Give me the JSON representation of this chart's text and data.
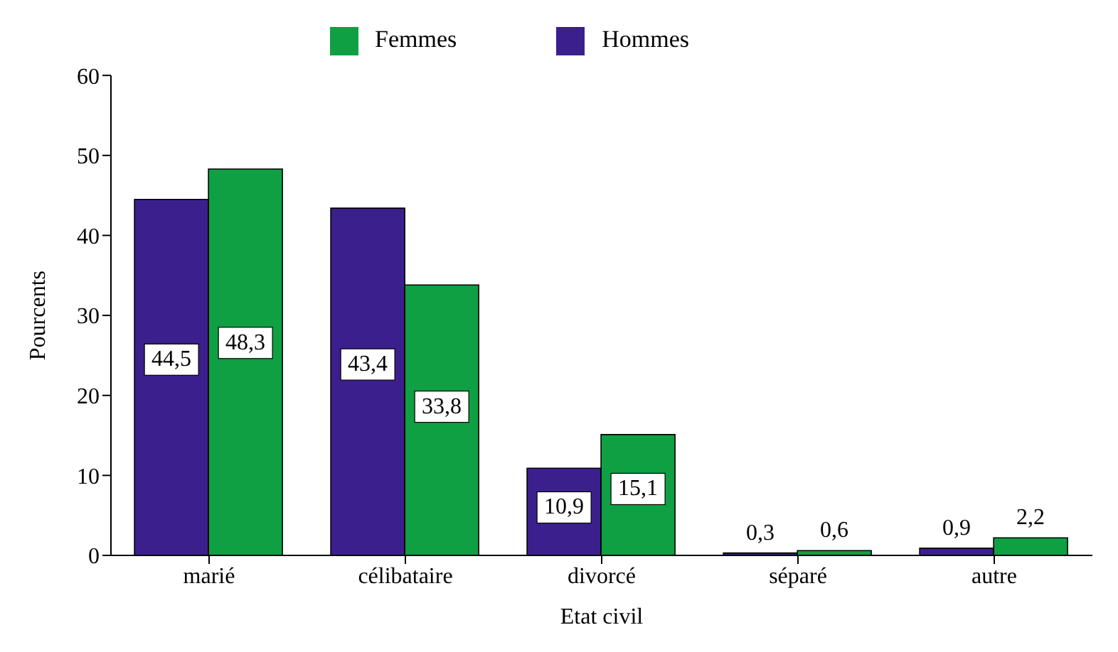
{
  "chart_data": {
    "type": "bar",
    "xlabel": "Etat civil",
    "ylabel": "Pourcents",
    "categories": [
      "marié",
      "célibataire",
      "divorcé",
      "séparé",
      "autre"
    ],
    "series": [
      {
        "name": "Hommes",
        "color": "#3b1f8c",
        "values": [
          44.5,
          43.4,
          10.9,
          0.3,
          0.9
        ],
        "value_labels": [
          "44,5",
          "43,4",
          "10,9",
          "0,3",
          "0,9"
        ]
      },
      {
        "name": "Femmes",
        "color": "#0ea043",
        "values": [
          48.3,
          33.8,
          15.1,
          0.6,
          2.2
        ],
        "value_labels": [
          "48,3",
          "33,8",
          "15,1",
          "0,6",
          "2,2"
        ]
      }
    ],
    "ylim": [
      0,
      60
    ],
    "yticks": [
      0,
      10,
      20,
      30,
      40,
      50,
      60
    ],
    "grid": false,
    "legend": "top"
  }
}
